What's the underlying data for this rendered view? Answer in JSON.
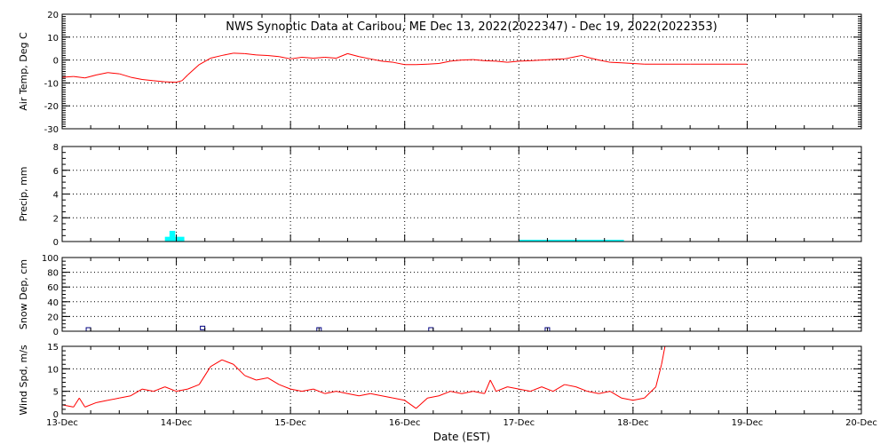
{
  "title": "NWS Synoptic Data at Caribou, ME    Dec 13, 2022(2022347) - Dec 19, 2022(2022353)",
  "x_axis": {
    "label": "Date (EST)",
    "ticks": [
      "13-Dec",
      "14-Dec",
      "15-Dec",
      "16-Dec",
      "17-Dec",
      "18-Dec",
      "19-Dec",
      "20-Dec"
    ]
  },
  "chart_data": [
    {
      "type": "line",
      "ylabel": "Air Temp, Deg C",
      "ylim": [
        -30,
        20
      ],
      "yticks": [
        -30,
        -20,
        -10,
        0,
        10,
        20
      ],
      "grid": true,
      "color": "#ff0000",
      "x_unit": "days since 13-Dec",
      "points": [
        [
          0,
          -7.5
        ],
        [
          0.1,
          -7.2
        ],
        [
          0.2,
          -7.8
        ],
        [
          0.3,
          -6.5
        ],
        [
          0.4,
          -5.5
        ],
        [
          0.5,
          -6.0
        ],
        [
          0.6,
          -7.5
        ],
        [
          0.7,
          -8.5
        ],
        [
          0.8,
          -9.0
        ],
        [
          0.9,
          -9.5
        ],
        [
          1.0,
          -9.7
        ],
        [
          1.05,
          -9.0
        ],
        [
          1.1,
          -6.5
        ],
        [
          1.2,
          -2.0
        ],
        [
          1.3,
          0.8
        ],
        [
          1.4,
          2.0
        ],
        [
          1.5,
          3.0
        ],
        [
          1.6,
          2.8
        ],
        [
          1.7,
          2.2
        ],
        [
          1.8,
          2.0
        ],
        [
          1.9,
          1.5
        ],
        [
          2.0,
          0.5
        ],
        [
          2.1,
          1.2
        ],
        [
          2.2,
          0.8
        ],
        [
          2.3,
          1.2
        ],
        [
          2.4,
          0.8
        ],
        [
          2.5,
          2.8
        ],
        [
          2.6,
          1.5
        ],
        [
          2.7,
          0.5
        ],
        [
          2.8,
          -0.5
        ],
        [
          2.9,
          -1.0
        ],
        [
          3.0,
          -2.0
        ],
        [
          3.1,
          -2.0
        ],
        [
          3.2,
          -1.8
        ],
        [
          3.3,
          -1.5
        ],
        [
          3.4,
          -0.5
        ],
        [
          3.5,
          0.0
        ],
        [
          3.6,
          0.2
        ],
        [
          3.7,
          -0.3
        ],
        [
          3.8,
          -0.5
        ],
        [
          3.9,
          -1.0
        ],
        [
          4.0,
          -0.5
        ],
        [
          4.1,
          -0.3
        ],
        [
          4.2,
          0.0
        ],
        [
          4.3,
          0.3
        ],
        [
          4.4,
          0.5
        ],
        [
          4.5,
          1.5
        ],
        [
          4.55,
          2.0
        ],
        [
          4.6,
          1.2
        ],
        [
          4.7,
          0.0
        ],
        [
          4.8,
          -1.0
        ],
        [
          4.9,
          -1.2
        ],
        [
          5.0,
          -1.5
        ],
        [
          5.1,
          -1.8
        ],
        [
          5.5,
          -1.8
        ],
        [
          6.0,
          -1.8
        ]
      ]
    },
    {
      "type": "bar",
      "ylabel": "Precip, mm",
      "ylim": [
        0,
        8
      ],
      "yticks": [
        0,
        2,
        4,
        6,
        8
      ],
      "grid": true,
      "color": "#00ffff",
      "x_unit": "days since 13-Dec",
      "bars": [
        {
          "x": 0.9,
          "x_end": 0.97,
          "value": 0.4
        },
        {
          "x": 0.94,
          "x_end": 0.99,
          "value": 0.9
        },
        {
          "x": 0.99,
          "x_end": 1.07,
          "value": 0.4
        },
        {
          "x": 4.0,
          "x_end": 4.92,
          "value": 0.1
        }
      ]
    },
    {
      "type": "scatter",
      "ylabel": "Snow Dep, cm",
      "ylim": [
        0,
        100
      ],
      "yticks": [
        0,
        20,
        40,
        60,
        80,
        100
      ],
      "grid": true,
      "color": "#000080",
      "marker": "square",
      "x_unit": "days since 13-Dec",
      "points": [
        [
          0.23,
          0
        ],
        [
          1.23,
          2
        ],
        [
          2.25,
          0
        ],
        [
          3.23,
          0
        ],
        [
          4.25,
          0
        ]
      ]
    },
    {
      "type": "line",
      "ylabel": "Wind Spd, m/s",
      "ylim": [
        0,
        15
      ],
      "yticks": [
        0,
        5,
        10,
        15
      ],
      "grid": true,
      "color": "#ff0000",
      "x_unit": "days since 13-Dec",
      "points": [
        [
          0,
          2.0
        ],
        [
          0.1,
          1.5
        ],
        [
          0.15,
          3.5
        ],
        [
          0.2,
          1.5
        ],
        [
          0.3,
          2.5
        ],
        [
          0.4,
          3.0
        ],
        [
          0.5,
          3.5
        ],
        [
          0.6,
          4.0
        ],
        [
          0.7,
          5.5
        ],
        [
          0.8,
          5.0
        ],
        [
          0.9,
          6.0
        ],
        [
          1.0,
          5.0
        ],
        [
          1.1,
          5.5
        ],
        [
          1.2,
          6.5
        ],
        [
          1.3,
          10.5
        ],
        [
          1.4,
          12.0
        ],
        [
          1.5,
          11.0
        ],
        [
          1.6,
          8.5
        ],
        [
          1.7,
          7.5
        ],
        [
          1.8,
          8.0
        ],
        [
          1.9,
          6.5
        ],
        [
          2.0,
          5.5
        ],
        [
          2.1,
          5.0
        ],
        [
          2.2,
          5.5
        ],
        [
          2.3,
          4.5
        ],
        [
          2.4,
          5.0
        ],
        [
          2.5,
          4.5
        ],
        [
          2.6,
          4.0
        ],
        [
          2.7,
          4.5
        ],
        [
          2.8,
          4.0
        ],
        [
          2.9,
          3.5
        ],
        [
          3.0,
          3.0
        ],
        [
          3.1,
          1.2
        ],
        [
          3.2,
          3.5
        ],
        [
          3.3,
          4.0
        ],
        [
          3.4,
          5.0
        ],
        [
          3.5,
          4.5
        ],
        [
          3.6,
          5.0
        ],
        [
          3.7,
          4.5
        ],
        [
          3.75,
          7.5
        ],
        [
          3.8,
          5.0
        ],
        [
          3.9,
          6.0
        ],
        [
          4.0,
          5.5
        ],
        [
          4.1,
          5.0
        ],
        [
          4.2,
          6.0
        ],
        [
          4.3,
          5.0
        ],
        [
          4.4,
          6.5
        ],
        [
          4.5,
          6.0
        ],
        [
          4.6,
          5.0
        ],
        [
          4.7,
          4.5
        ],
        [
          4.8,
          5.0
        ],
        [
          4.9,
          3.5
        ],
        [
          5.0,
          3.0
        ],
        [
          5.1,
          3.5
        ],
        [
          5.2,
          6.0
        ],
        [
          5.25,
          11.0
        ],
        [
          5.28,
          15.0
        ]
      ]
    }
  ]
}
